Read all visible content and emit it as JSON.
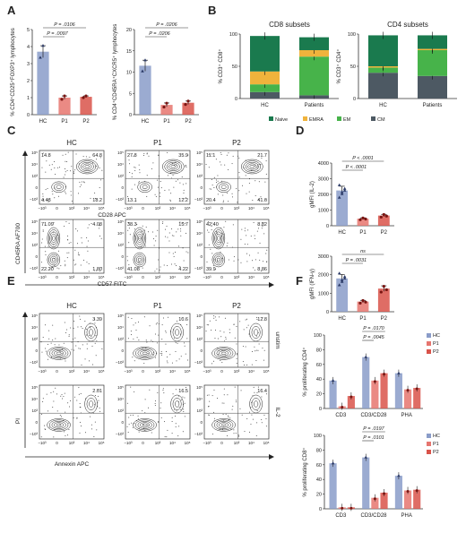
{
  "panel_letters": [
    "A",
    "B",
    "C",
    "D",
    "E",
    "F"
  ],
  "colors": {
    "hc": "#8a9cc9",
    "p1": "#e6756f",
    "p2": "#d9534a",
    "naive": "#1a7a4e",
    "emra": "#f0b33c",
    "em": "#47b34a",
    "cm": "#4d5963"
  },
  "chart_data": [
    {
      "id": "A1",
      "type": "bar",
      "categories": [
        "HC",
        "P1",
        "P2"
      ],
      "values": [
        3.7,
        1.0,
        1.05
      ],
      "points": [
        [
          3.35,
          4.05
        ],
        [
          0.9,
          1.1
        ],
        [
          1.0,
          1.1
        ]
      ],
      "ylabel": "% CD4⁺CD25⁺FOXP3⁺ lymphocytes",
      "ylim": [
        0,
        5
      ],
      "yticks": [
        "0",
        "1",
        "2",
        "3",
        "4",
        "5"
      ],
      "pvalues": [
        "P = .0106",
        "P = .0097"
      ]
    },
    {
      "id": "A2",
      "type": "bar",
      "categories": [
        "HC",
        "P1",
        "P2"
      ],
      "values": [
        11.5,
        2.3,
        2.8
      ],
      "points": [
        [
          10.2,
          12.8
        ],
        [
          1.8,
          2.7
        ],
        [
          2.4,
          3.2
        ]
      ],
      "ylabel": "% CD4⁺CD45RA⁺CXCR5⁺ lymphocytes",
      "ylim": [
        0,
        20
      ],
      "yticks": [
        "0",
        "5",
        "10",
        "15",
        "20"
      ],
      "pvalues": [
        "P = .0206",
        "P = .0206"
      ]
    },
    {
      "id": "B1",
      "type": "bar",
      "title": "CD8 subsets",
      "categories": [
        "HC",
        "Patients"
      ],
      "series": [
        {
          "name": "CM",
          "values": [
            10,
            5
          ]
        },
        {
          "name": "EM",
          "values": [
            12,
            60
          ]
        },
        {
          "name": "EMRA",
          "values": [
            20,
            10
          ]
        },
        {
          "name": "Naive",
          "values": [
            55,
            20
          ]
        }
      ],
      "ylabel": "% CD3⁺ CD8⁺",
      "ylim": [
        0,
        100
      ],
      "yticks": [
        "0",
        "50",
        "100"
      ]
    },
    {
      "id": "B2",
      "type": "bar",
      "title": "CD4 subsets",
      "categories": [
        "HC",
        "Patients"
      ],
      "series": [
        {
          "name": "CM",
          "values": [
            40,
            35
          ]
        },
        {
          "name": "EM",
          "values": [
            8,
            40
          ]
        },
        {
          "name": "EMRA",
          "values": [
            2,
            2
          ]
        },
        {
          "name": "Naive",
          "values": [
            48,
            21
          ]
        }
      ],
      "ylabel": "% CD3⁺ CD4⁺",
      "ylim": [
        0,
        100
      ],
      "yticks": [
        "0",
        "50",
        "100"
      ]
    },
    {
      "id": "D1",
      "type": "bar",
      "categories": [
        "HC",
        "P1",
        "P2"
      ],
      "values": [
        2250,
        450,
        650
      ],
      "ylabel": "gMFI (IL-2)",
      "ylim": [
        0,
        4000
      ],
      "yticks": [
        "0",
        "1000",
        "2000",
        "3000",
        "4000"
      ],
      "pvalues": [
        "P < .0001",
        "P < .0001"
      ]
    },
    {
      "id": "D2",
      "type": "bar",
      "categories": [
        "HC",
        "P1",
        "P2"
      ],
      "values": [
        1800,
        550,
        1250
      ],
      "ylabel": "gMFI (IFN-γ)",
      "ylim": [
        0,
        3000
      ],
      "yticks": [
        "0",
        "1000",
        "2000",
        "3000"
      ],
      "pvalues": [
        "ns",
        "P = .0031"
      ]
    },
    {
      "id": "F1",
      "type": "bar",
      "categories": [
        "CD3",
        "CD3/CD28",
        "PHA"
      ],
      "series": [
        {
          "name": "HC",
          "values": [
            38,
            70,
            48
          ]
        },
        {
          "name": "P1",
          "values": [
            3,
            38,
            26
          ]
        },
        {
          "name": "P2",
          "values": [
            17,
            48,
            28
          ]
        }
      ],
      "ylabel": "% proliferating CD4⁺",
      "ylim": [
        0,
        100
      ],
      "yticks": [
        "0",
        "20",
        "40",
        "60",
        "80",
        "100"
      ],
      "pvalues": [
        "P = .0170",
        "P = .0045"
      ]
    },
    {
      "id": "F2",
      "type": "bar",
      "categories": [
        "CD3",
        "CD3/CD28",
        "PHA"
      ],
      "series": [
        {
          "name": "HC",
          "values": [
            62,
            70,
            45
          ]
        },
        {
          "name": "P1",
          "values": [
            2,
            15,
            25
          ]
        },
        {
          "name": "P2",
          "values": [
            2,
            22,
            26
          ]
        }
      ],
      "ylabel": "% proliferating CD8⁺",
      "ylim": [
        0,
        100
      ],
      "yticks": [
        "0",
        "20",
        "40",
        "60",
        "80",
        "100"
      ],
      "pvalues": [
        "P = .0197",
        "P = .0101"
      ]
    }
  ],
  "flow": {
    "c_columns": [
      "HC",
      "P1",
      "P2"
    ],
    "c_rows": [
      {
        "xlabel": "CD28 APC",
        "quads": [
          [
            "14.8",
            "64.8",
            "4.43",
            "18.2"
          ],
          [
            "27.8",
            "35.9",
            "13.1",
            "12.2"
          ],
          [
            "11.1",
            "21.7",
            "20.4",
            "41.6"
          ]
        ]
      },
      {
        "xlabel": "CD57 FITC",
        "quads": [
          [
            "71.09",
            "4.08",
            "22.20",
            "1.80"
          ],
          [
            "38.3",
            "15.7",
            "41.08",
            "4.22"
          ],
          [
            "42.40",
            "8.82",
            "39.9",
            "8.86"
          ]
        ]
      }
    ],
    "c_ylabel": "CD45RA AF700",
    "e_columns": [
      "HC",
      "P1",
      "P2"
    ],
    "e_rows": [
      {
        "label": "unstim",
        "vals": [
          "3.39",
          "10.6",
          "12.8"
        ]
      },
      {
        "label": "IL-2",
        "vals": [
          "2.01",
          "16.5",
          "16.4"
        ]
      }
    ],
    "e_ylabel": "PI",
    "e_xlabel": "Annexin APC",
    "y_ticks": [
      "10⁵",
      "10⁴",
      "10³",
      "0",
      "−10³"
    ],
    "x_ticks": [
      "−10³",
      "0",
      "10³",
      "10⁴",
      "10⁵"
    ]
  },
  "legends": {
    "b": [
      "Naive",
      "EMRA",
      "EM",
      "CM"
    ],
    "f": [
      "HC",
      "P1",
      "P2"
    ]
  }
}
